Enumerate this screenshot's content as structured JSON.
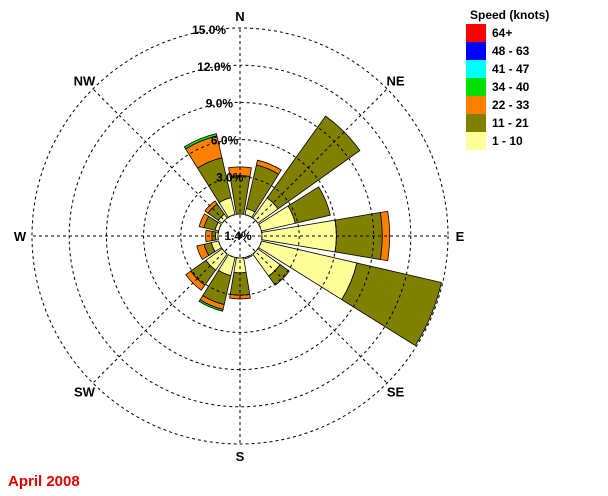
{
  "chart_data": {
    "type": "wind-rose",
    "title": "",
    "caption": "April 2008",
    "legend_title": "Speed (knots)",
    "bins": [
      {
        "label": "64+",
        "color": "#ff0000"
      },
      {
        "label": "48 - 63",
        "color": "#0000ff"
      },
      {
        "label": "41 - 47",
        "color": "#00ffff"
      },
      {
        "label": "34 - 40",
        "color": "#00e000"
      },
      {
        "label": "22 - 33",
        "color": "#ff8000"
      },
      {
        "label": "11 - 21",
        "color": "#808000"
      },
      {
        "label": "1 - 10",
        "color": "#ffff99"
      }
    ],
    "rings_percent": [
      3.0,
      6.0,
      9.0,
      12.0,
      15.0
    ],
    "ring_labels": [
      "3.0%",
      "6.0%",
      "9.0%",
      "12.0%",
      "15.0%"
    ],
    "calm_label": "1.4%",
    "calm_percent": 1.4,
    "directions": [
      "N",
      "NNE",
      "NE",
      "ENE",
      "E",
      "ESE",
      "SE",
      "SSE",
      "S",
      "SSW",
      "SW",
      "WSW",
      "W",
      "WNW",
      "NW",
      "NNW"
    ],
    "compass_labels": [
      {
        "text": "N",
        "deg": 0
      },
      {
        "text": "NE",
        "deg": 45
      },
      {
        "text": "E",
        "deg": 90
      },
      {
        "text": "SE",
        "deg": 135
      },
      {
        "text": "S",
        "deg": 180
      },
      {
        "text": "SW",
        "deg": 225
      },
      {
        "text": "W",
        "deg": 270
      },
      {
        "text": "NW",
        "deg": 315
      }
    ],
    "series_note": "values are percent of time per bin, order: 1-10, 11-21, 22-33, 34-40",
    "values": [
      [
        0.0,
        3.1,
        0.7,
        0.0
      ],
      [
        0.5,
        3.6,
        0.4,
        0.0
      ],
      [
        2.0,
        8.1,
        0.0,
        0.0
      ],
      [
        2.8,
        2.9,
        0.0,
        0.0
      ],
      [
        6.0,
        3.7,
        0.6,
        0.0
      ],
      [
        7.9,
        7.0,
        0.0,
        0.0
      ],
      [
        2.2,
        0.9,
        0.0,
        0.0
      ],
      [
        0.1,
        0.0,
        0.0,
        0.0
      ],
      [
        1.2,
        1.8,
        0.3,
        0.0
      ],
      [
        1.5,
        2.4,
        0.4,
        0.15
      ],
      [
        1.6,
        1.5,
        0.5,
        0.0
      ],
      [
        0.6,
        0.6,
        0.6,
        0.0
      ],
      [
        0.2,
        0.3,
        0.5,
        0.0
      ],
      [
        0.3,
        0.9,
        0.4,
        0.0
      ],
      [
        0.4,
        1.0,
        0.3,
        0.0
      ],
      [
        1.4,
        3.3,
        1.8,
        0.2
      ]
    ]
  }
}
